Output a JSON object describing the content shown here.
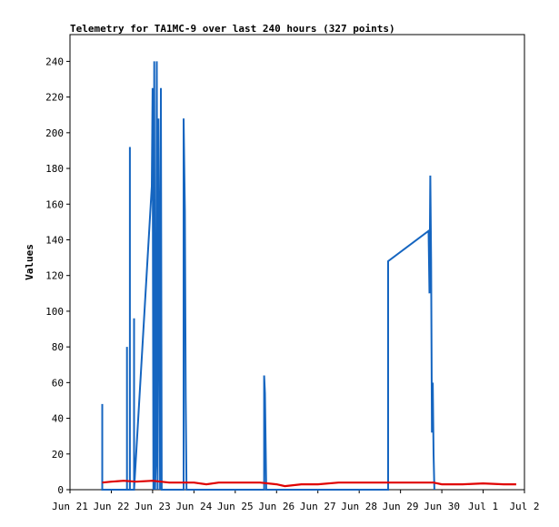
{
  "chart_data": {
    "type": "line",
    "title": "Telemetry for TA1MC-9 over last 240 hours (327 points)",
    "xlabel": "",
    "ylabel": "Values",
    "x_unit": "days since Jun 21 00:00",
    "xlim": [
      0,
      11
    ],
    "ylim": [
      0,
      255
    ],
    "y_ticks": [
      0,
      20,
      40,
      60,
      80,
      100,
      120,
      140,
      160,
      180,
      200,
      220,
      240
    ],
    "x_ticks": [
      {
        "x": 0,
        "label": "Jun 21"
      },
      {
        "x": 1,
        "label": "Jun 22"
      },
      {
        "x": 2,
        "label": "Jun 23"
      },
      {
        "x": 3,
        "label": "Jun 24"
      },
      {
        "x": 4,
        "label": "Jun 25"
      },
      {
        "x": 5,
        "label": "Jun 26"
      },
      {
        "x": 6,
        "label": "Jun 27"
      },
      {
        "x": 7,
        "label": "Jun 28"
      },
      {
        "x": 8,
        "label": "Jun 29"
      },
      {
        "x": 9,
        "label": "Jun 30"
      },
      {
        "x": 10,
        "label": "Jul 1"
      },
      {
        "x": 11,
        "label": "Jul 2"
      }
    ],
    "grid": false,
    "legend": "none",
    "series": [
      {
        "name": "",
        "color": "#1565C0",
        "points": [
          [
            0.78,
            0
          ],
          [
            0.78,
            48
          ],
          [
            0.78,
            0
          ],
          [
            1.38,
            0
          ],
          [
            1.38,
            80
          ],
          [
            1.38,
            0
          ],
          [
            1.45,
            0
          ],
          [
            1.45,
            192
          ],
          [
            1.45,
            0
          ],
          [
            1.55,
            0
          ],
          [
            1.55,
            96
          ],
          [
            1.55,
            0
          ],
          [
            1.98,
            170
          ],
          [
            2.0,
            225
          ],
          [
            2.02,
            0
          ],
          [
            2.04,
            240
          ],
          [
            2.06,
            0
          ],
          [
            2.08,
            16
          ],
          [
            2.1,
            240
          ],
          [
            2.12,
            0
          ],
          [
            2.14,
            208
          ],
          [
            2.16,
            128
          ],
          [
            2.18,
            0
          ],
          [
            2.2,
            225
          ],
          [
            2.22,
            0
          ],
          [
            2.75,
            0
          ],
          [
            2.75,
            208
          ],
          [
            2.78,
            156
          ],
          [
            2.8,
            52
          ],
          [
            2.82,
            0
          ],
          [
            4.7,
            0
          ],
          [
            4.7,
            64
          ],
          [
            4.72,
            54
          ],
          [
            4.75,
            0
          ],
          [
            7.7,
            0
          ],
          [
            7.7,
            128
          ],
          [
            8.68,
            145
          ],
          [
            8.7,
            110
          ],
          [
            8.72,
            176
          ],
          [
            8.74,
            128
          ],
          [
            8.76,
            32
          ],
          [
            8.78,
            60
          ],
          [
            8.8,
            20
          ],
          [
            8.82,
            0
          ]
        ]
      },
      {
        "name": "",
        "color": "#E00000",
        "points": [
          [
            0.78,
            4
          ],
          [
            1.0,
            4.5
          ],
          [
            1.3,
            5
          ],
          [
            1.6,
            4.5
          ],
          [
            2.0,
            5
          ],
          [
            2.4,
            4
          ],
          [
            3.0,
            4
          ],
          [
            3.3,
            3
          ],
          [
            3.6,
            4
          ],
          [
            4.0,
            4
          ],
          [
            4.6,
            4
          ],
          [
            5.0,
            3
          ],
          [
            5.2,
            2
          ],
          [
            5.6,
            3
          ],
          [
            6.0,
            3
          ],
          [
            6.5,
            4
          ],
          [
            7.0,
            4
          ],
          [
            8.0,
            4
          ],
          [
            8.8,
            4
          ],
          [
            9.0,
            3
          ],
          [
            9.5,
            3
          ],
          [
            10.0,
            3.5
          ],
          [
            10.5,
            3
          ],
          [
            10.8,
            3
          ]
        ]
      }
    ]
  }
}
